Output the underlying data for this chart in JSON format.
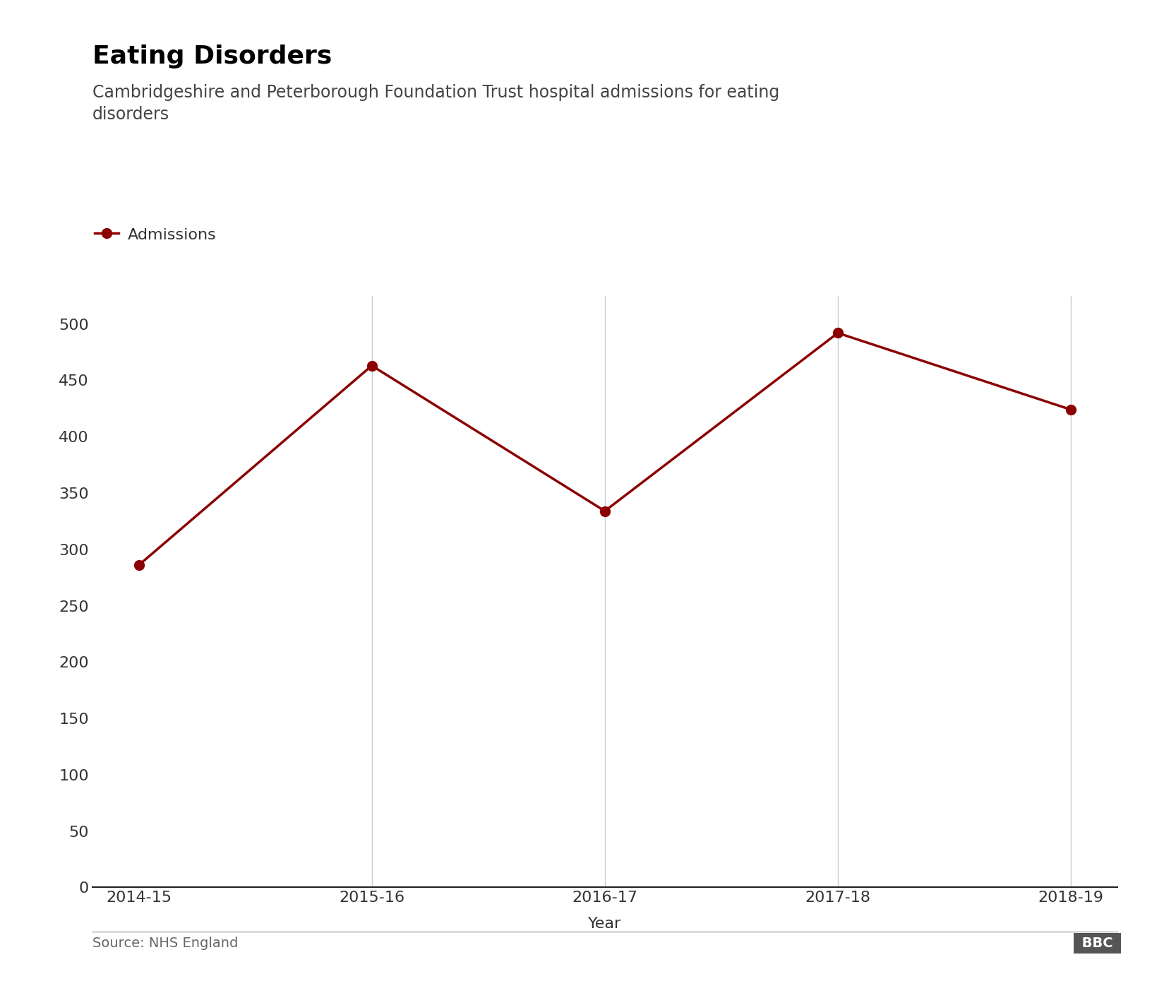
{
  "title": "Eating Disorders",
  "subtitle": "Cambridgeshire and Peterborough Foundation Trust hospital admissions for eating\ndisorders",
  "source": "Source: NHS England",
  "xlabel": "Year",
  "legend_label": "Admissions",
  "years": [
    "2014-15",
    "2015-16",
    "2016-17",
    "2017-18",
    "2018-19"
  ],
  "values": [
    286,
    463,
    334,
    492,
    424
  ],
  "line_color": "#8B0000",
  "marker_color": "#8B0000",
  "background_color": "#ffffff",
  "grid_color": "#cccccc",
  "ylim": [
    0,
    525
  ],
  "yticks": [
    0,
    50,
    100,
    150,
    200,
    250,
    300,
    350,
    400,
    450,
    500
  ],
  "title_fontsize": 26,
  "subtitle_fontsize": 17,
  "tick_fontsize": 16,
  "xlabel_fontsize": 16,
  "legend_fontsize": 16,
  "source_fontsize": 14,
  "marker_size": 10,
  "line_width": 2.5,
  "fig_width": 16.32,
  "fig_height": 13.96
}
